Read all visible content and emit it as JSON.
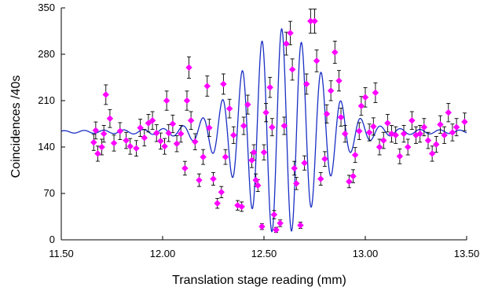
{
  "chart_data": {
    "type": "scatter",
    "xlabel": "Translation stage reading (mm)",
    "ylabel": "Coincidences /40s",
    "xlim": [
      11.5,
      13.5
    ],
    "ylim": [
      0,
      350
    ],
    "x_ticks": [
      "11.50",
      "12.00",
      "12.50",
      "13.00",
      "13.50"
    ],
    "y_ticks": [
      "0",
      "70",
      "140",
      "210",
      "280",
      "350"
    ],
    "grid": false,
    "legend": "none",
    "colors": {
      "fit_line": "#1a2fc4",
      "points": "#ff00ff",
      "error_bars": "#000000"
    },
    "series": [
      {
        "kind": "points_with_error_bars",
        "x": [
          11.66,
          11.67,
          11.68,
          11.7,
          11.71,
          11.72,
          11.74,
          11.76,
          11.79,
          11.82,
          11.84,
          11.87,
          11.89,
          11.91,
          11.93,
          11.95,
          11.97,
          11.99,
          12.01,
          12.02,
          12.03,
          12.05,
          12.07,
          12.09,
          12.11,
          12.12,
          12.13,
          12.14,
          12.16,
          12.18,
          12.2,
          12.22,
          12.23,
          12.25,
          12.27,
          12.29,
          12.3,
          12.31,
          12.33,
          12.35,
          12.37,
          12.39,
          12.4,
          12.42,
          12.44,
          12.45,
          12.46,
          12.47,
          12.49,
          12.5,
          12.51,
          12.53,
          12.54,
          12.55,
          12.56,
          12.58,
          12.6,
          12.61,
          12.63,
          12.64,
          12.65,
          12.66,
          12.68,
          12.7,
          12.71,
          12.73,
          12.75,
          12.76,
          12.78,
          12.8,
          12.81,
          12.83,
          12.85,
          12.87,
          12.88,
          12.9,
          12.92,
          12.94,
          12.95,
          12.97,
          12.98,
          13.0,
          13.02,
          13.04,
          13.05,
          13.07,
          13.09,
          13.11,
          13.13,
          13.15,
          13.17,
          13.19,
          13.21,
          13.23,
          13.25,
          13.27,
          13.29,
          13.31,
          13.33,
          13.35,
          13.37,
          13.39,
          13.41,
          13.43,
          13.45,
          13.49
        ],
        "y": [
          147,
          165,
          130,
          140,
          160,
          219,
          183,
          146,
          164,
          150,
          141,
          138,
          169,
          154,
          176,
          180,
          161,
          149,
          141,
          210,
          161,
          175,
          145,
          160,
          108,
          210,
          260,
          180,
          148,
          90,
          125,
          232,
          169,
          92,
          55,
          72,
          235,
          125,
          198,
          158,
          52,
          50,
          172,
          204,
          120,
          132,
          90,
          82,
          20,
          132,
          192,
          230,
          170,
          38,
          15,
          25,
          172,
          296,
          312,
          257,
          108,
          85,
          22,
          116,
          235,
          330,
          330,
          270,
          92,
          122,
          190,
          225,
          283,
          240,
          185,
          160,
          88,
          96,
          128,
          164,
          202,
          215,
          162,
          171,
          222,
          140,
          150,
          176,
          160,
          158,
          126,
          160,
          140,
          180,
          158,
          160,
          170,
          150,
          130,
          144,
          174,
          158,
          192,
          162,
          170,
          178
        ]
      },
      {
        "kind": "fit_curve",
        "name": "",
        "x_range": [
          11.5,
          13.5
        ]
      }
    ]
  }
}
